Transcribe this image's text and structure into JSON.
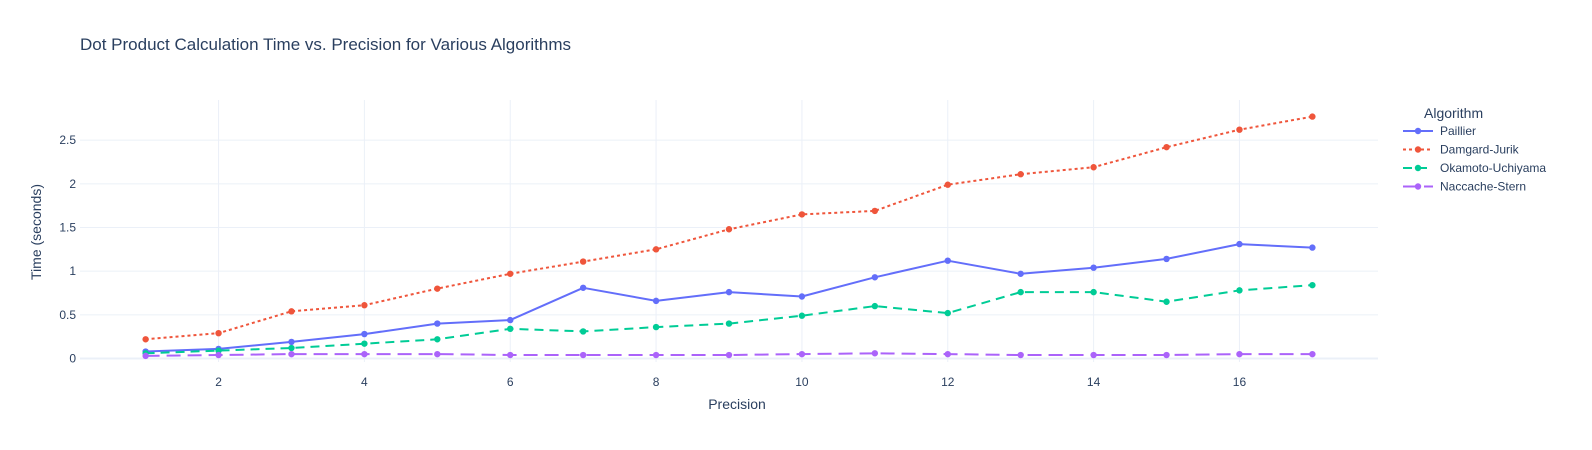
{
  "chart_data": {
    "type": "line",
    "title": "Dot Product Calculation Time vs. Precision for Various Algorithms",
    "xlabel": "Precision",
    "ylabel": "Time (seconds)",
    "xlim": [
      0.1,
      17.9
    ],
    "ylim": [
      -0.04,
      2.96
    ],
    "x_ticks": [
      2,
      4,
      6,
      8,
      10,
      12,
      14,
      16
    ],
    "y_ticks": [
      0,
      0.5,
      1,
      1.5,
      2,
      2.5
    ],
    "y_tick_labels": [
      "0",
      "0.5",
      "1",
      "1.5",
      "2",
      "2.5"
    ],
    "grid": true,
    "legend_title": "Algorithm",
    "legend_position": "top-right",
    "x": [
      1,
      2,
      3,
      4,
      5,
      6,
      7,
      8,
      9,
      10,
      11,
      12,
      13,
      14,
      15,
      16,
      17
    ],
    "series": [
      {
        "name": "Paillier",
        "color": "#636efa",
        "dash": "solid",
        "values": [
          0.08,
          0.11,
          0.19,
          0.28,
          0.4,
          0.44,
          0.81,
          0.66,
          0.76,
          0.71,
          0.93,
          1.12,
          0.97,
          1.04,
          1.14,
          1.31,
          1.27
        ]
      },
      {
        "name": "Damgard-Jurik",
        "color": "#ef553b",
        "dash": "dot",
        "values": [
          0.22,
          0.29,
          0.54,
          0.61,
          0.8,
          0.97,
          1.11,
          1.25,
          1.48,
          1.65,
          1.69,
          1.99,
          2.11,
          2.19,
          2.42,
          2.62,
          2.77
        ]
      },
      {
        "name": "Okamoto-Uchiyama",
        "color": "#00cc96",
        "dash": "dash",
        "values": [
          0.06,
          0.09,
          0.12,
          0.17,
          0.22,
          0.34,
          0.31,
          0.36,
          0.4,
          0.49,
          0.6,
          0.52,
          0.76,
          0.76,
          0.65,
          0.78,
          0.84
        ]
      },
      {
        "name": "Naccache-Stern",
        "color": "#ab63fa",
        "dash": "longdash",
        "values": [
          0.03,
          0.04,
          0.05,
          0.05,
          0.05,
          0.04,
          0.04,
          0.04,
          0.04,
          0.05,
          0.06,
          0.05,
          0.04,
          0.04,
          0.04,
          0.05,
          0.05
        ]
      }
    ]
  }
}
